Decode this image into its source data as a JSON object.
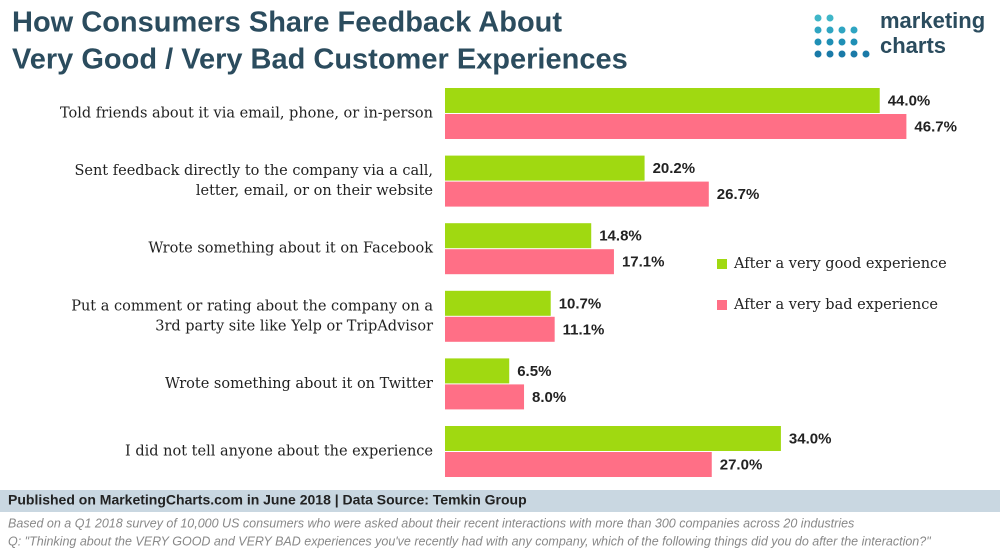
{
  "chart_data": {
    "type": "bar",
    "orientation": "horizontal",
    "title": [
      "How Consumers Share Feedback About",
      "Very Good / Very Bad Customer Experiences"
    ],
    "logo": [
      "marketing",
      "charts"
    ],
    "categories": [
      [
        "Told friends about it via email, phone, or in-person"
      ],
      [
        "Sent feedback directly to the company via a call,",
        "letter, email, or on their website"
      ],
      [
        "Wrote something about it on Facebook"
      ],
      [
        "Put a comment or rating about the company on a",
        "3rd party site like Yelp or TripAdvisor"
      ],
      [
        "Wrote something about it on Twitter"
      ],
      [
        "I did not tell anyone about the experience"
      ]
    ],
    "series": [
      {
        "name": "After a very good experience",
        "color": "#a0d911",
        "values": [
          44.0,
          20.2,
          14.8,
          10.7,
          6.5,
          34.0
        ],
        "value_labels": [
          "44.0%",
          "20.2%",
          "14.8%",
          "10.7%",
          "6.5%",
          "34.0%"
        ]
      },
      {
        "name": "After a very bad experience",
        "color": "#ff6f86",
        "values": [
          46.7,
          26.7,
          17.1,
          11.1,
          8.0,
          27.0
        ],
        "value_labels": [
          "46.7%",
          "26.7%",
          "17.1%",
          "11.1%",
          "8.0%",
          "27.0%"
        ]
      }
    ],
    "xlim": [
      0,
      50
    ],
    "source": "Published on MarketingCharts.com in June 2018 | Data Source: Temkin Group",
    "notes": [
      "Based on a Q1 2018 survey of 10,000 US consumers who were asked about their recent interactions with more than 300 companies across 20 industries",
      "Q: \"Thinking about the VERY GOOD and VERY BAD experiences you've recently had with any company, which of the following things did you do after the interaction?\""
    ]
  }
}
